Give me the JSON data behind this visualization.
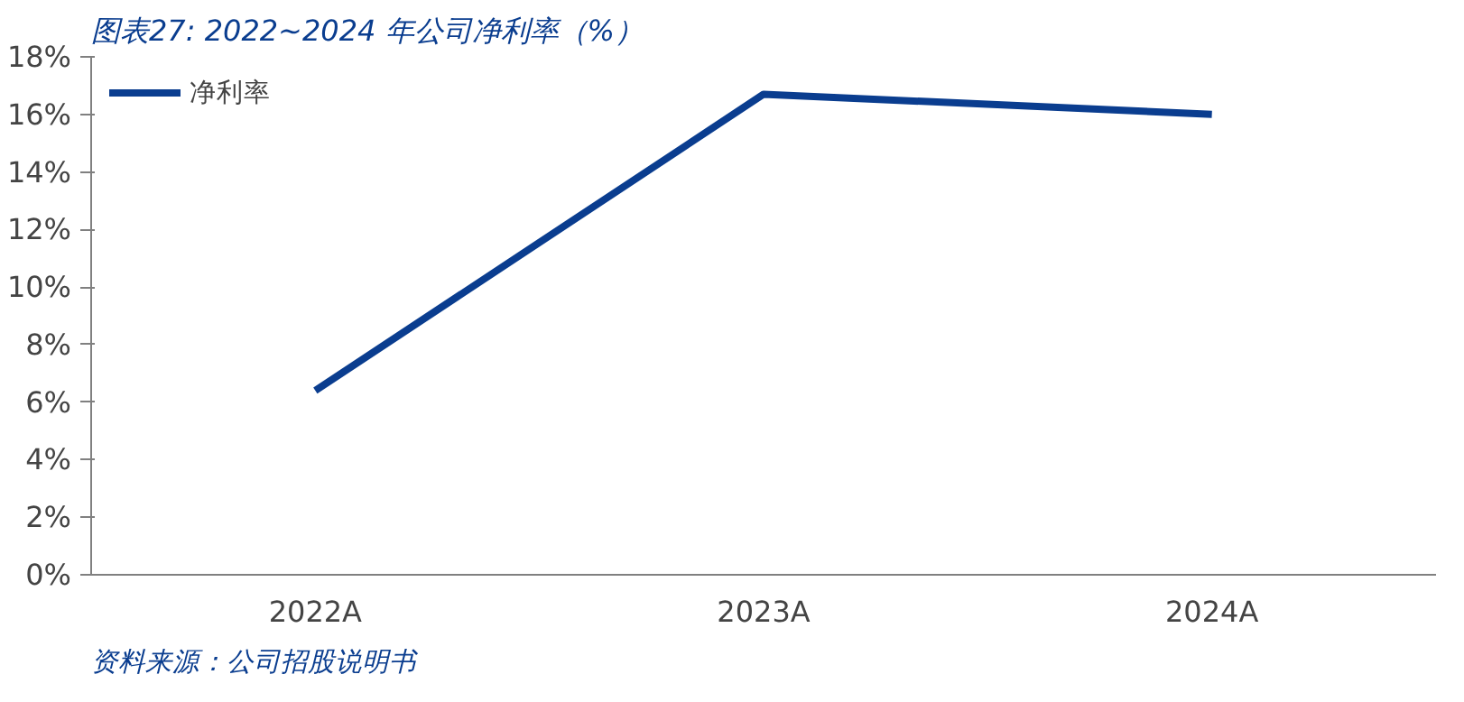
{
  "chart_data": {
    "type": "line",
    "title": "图表27: 2022~2024 年公司净利率（%）",
    "categories": [
      "2022A",
      "2023A",
      "2024A"
    ],
    "series": [
      {
        "name": "净利率",
        "color": "#0a3d8f",
        "values": [
          6.4,
          16.7,
          16.0
        ]
      }
    ],
    "ylim": [
      0,
      18
    ],
    "yticks": [
      {
        "value": 0,
        "label": "0%"
      },
      {
        "value": 2,
        "label": "2%"
      },
      {
        "value": 4,
        "label": "4%"
      },
      {
        "value": 6,
        "label": "6%"
      },
      {
        "value": 8,
        "label": "8%"
      },
      {
        "value": 10,
        "label": "10%"
      },
      {
        "value": 12,
        "label": "12%"
      },
      {
        "value": 14,
        "label": "14%"
      },
      {
        "value": 16,
        "label": "16%"
      },
      {
        "value": 18,
        "label": "18%"
      }
    ],
    "legend": "top left",
    "grid": false,
    "marker": "none",
    "line_style": "solid",
    "annotations": [
      "资料来源：公司招股说明书"
    ]
  }
}
